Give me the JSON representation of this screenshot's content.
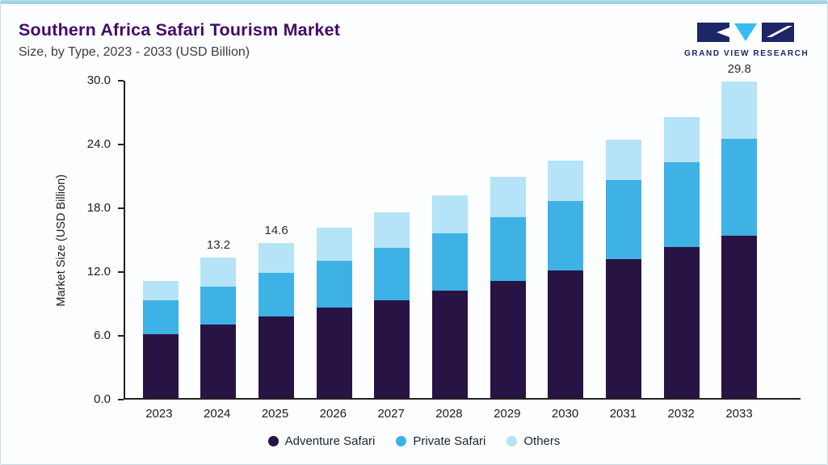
{
  "header": {
    "title": "Southern Africa Safari Tourism Market",
    "subtitle": "Size, by Type, 2023 - 2033 (USD Billion)"
  },
  "logo": {
    "text": "GRAND VIEW RESEARCH",
    "navy": "#1c2666",
    "cyan": "#35bdee"
  },
  "colors": {
    "top_accent": "#9ad6ee",
    "title": "#440a67",
    "axis": "#222222",
    "background": "#fdfeff"
  },
  "chart_data": {
    "type": "bar",
    "stacked": true,
    "title": "Southern Africa Safari Tourism Market Size, by Type, 2023 - 2033 (USD Billion)",
    "xlabel": "",
    "ylabel": "Market Size (USD Billion)",
    "ylim": [
      0,
      30
    ],
    "yticks": [
      0,
      6,
      12,
      18,
      24,
      30
    ],
    "ytick_labels": [
      "0.0",
      "6.0",
      "12.0",
      "18.0",
      "24.0",
      "30.0"
    ],
    "grid": false,
    "legend_position": "bottom",
    "categories": [
      "2023",
      "2024",
      "2025",
      "2026",
      "2027",
      "2028",
      "2029",
      "2030",
      "2031",
      "2032",
      "2033"
    ],
    "series": [
      {
        "name": "Adventure Safari",
        "color": "#281345",
        "values": [
          6.0,
          6.9,
          7.7,
          8.5,
          9.2,
          10.1,
          11.0,
          12.0,
          13.1,
          14.2,
          15.3
        ]
      },
      {
        "name": "Private Safari",
        "color": "#3eb1e5",
        "values": [
          3.2,
          3.6,
          4.1,
          4.4,
          4.9,
          5.4,
          6.0,
          6.5,
          7.4,
          8.0,
          9.1
        ]
      },
      {
        "name": "Others",
        "color": "#b5e3f7",
        "values": [
          1.8,
          2.7,
          2.8,
          3.1,
          3.4,
          3.6,
          3.8,
          3.8,
          3.8,
          4.2,
          5.4
        ]
      }
    ],
    "totals": [
      11.0,
      13.2,
      14.6,
      16.0,
      17.5,
      19.1,
      20.8,
      22.3,
      24.3,
      26.4,
      29.8
    ],
    "total_labels": {
      "2024": "13.2",
      "2025": "14.6",
      "2033": "29.8"
    }
  }
}
